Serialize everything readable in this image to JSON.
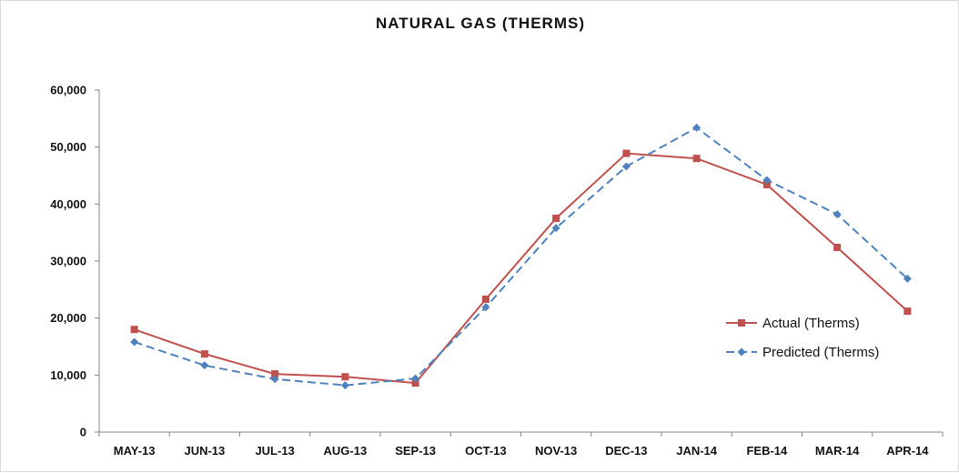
{
  "chart_data": {
    "type": "line",
    "title": "NATURAL GAS (THERMS)",
    "xlabel": "",
    "ylabel": "",
    "categories": [
      "MAY-13",
      "JUN-13",
      "JUL-13",
      "AUG-13",
      "SEP-13",
      "OCT-13",
      "NOV-13",
      "DEC-13",
      "JAN-14",
      "FEB-14",
      "MAR-14",
      "APR-14"
    ],
    "ylim": [
      0,
      60000
    ],
    "yticks": [
      0,
      10000,
      20000,
      30000,
      40000,
      50000,
      60000
    ],
    "ytick_labels": [
      "0",
      "10,000",
      "20,000",
      "30,000",
      "40,000",
      "50,000",
      "60,000"
    ],
    "grid": false,
    "legend_position": "right",
    "series": [
      {
        "name": "Actual (Therms)",
        "color": "#c0504d",
        "marker": "square",
        "line_style": "solid",
        "values": [
          18000,
          13700,
          10200,
          9700,
          8600,
          23300,
          37500,
          48900,
          48000,
          43400,
          32400,
          21200
        ]
      },
      {
        "name": "Predicted (Therms)",
        "color": "#4f81bd",
        "marker": "diamond",
        "line_style": "dashed",
        "values": [
          15800,
          11700,
          9300,
          8200,
          9400,
          21900,
          35800,
          46600,
          53400,
          44200,
          38200,
          26900
        ]
      }
    ]
  }
}
